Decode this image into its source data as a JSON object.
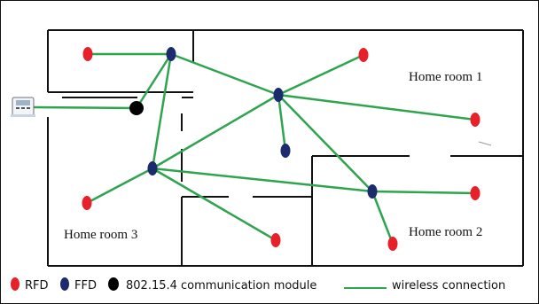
{
  "colors": {
    "rfd": "#e8202a",
    "ffd": "#1c2a6e",
    "module": "#000000",
    "link": "#2ea44f",
    "wall": "#111111"
  },
  "rooms": {
    "room1": "Home room 1",
    "room2": "Home room 2",
    "room3": "Home room 3"
  },
  "legend": {
    "rfd": "RFD",
    "ffd": "FFD",
    "module": "802.15.4 communication module",
    "wireless": "wireless connection"
  },
  "icons": {
    "gateway": "router-device-icon"
  }
}
